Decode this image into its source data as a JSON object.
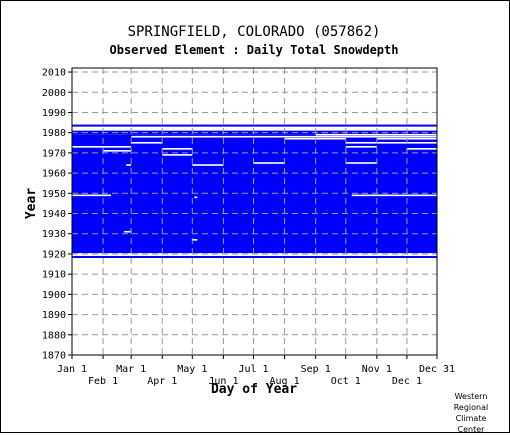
{
  "header": {
    "title": "SPRINGFIELD, COLORADO   (057862)",
    "subtitle": "Observed Element : Daily Total Snowdepth"
  },
  "credit": [
    "Western",
    "Regional",
    "Climate",
    "Center"
  ],
  "colors": {
    "data": "#0000ff",
    "grid": "#999999",
    "background": "#ffffff",
    "axis": "#000000"
  },
  "chart_data": {
    "type": "heatmap",
    "title": "SPRINGFIELD, COLORADO   (057862)",
    "subtitle": "Observed Element : Daily Total Snowdepth",
    "xlabel": "Day of Year",
    "ylabel": "Year",
    "xlim": [
      1,
      365
    ],
    "ylim": [
      1870,
      2012
    ],
    "x_ticks_upper": [
      {
        "label": "Jan 1",
        "day": 1
      },
      {
        "label": "Mar 1",
        "day": 60
      },
      {
        "label": "May 1",
        "day": 121
      },
      {
        "label": "Jul 1",
        "day": 182
      },
      {
        "label": "Sep 1",
        "day": 244
      },
      {
        "label": "Nov 1",
        "day": 305
      },
      {
        "label": "Dec 31",
        "day": 365
      }
    ],
    "x_ticks_lower": [
      {
        "label": "Feb 1",
        "day": 32
      },
      {
        "label": "Apr 1",
        "day": 91
      },
      {
        "label": "Jun 1",
        "day": 152
      },
      {
        "label": "Aug 1",
        "day": 213
      },
      {
        "label": "Oct 1",
        "day": 274
      },
      {
        "label": "Dec 1",
        "day": 335
      }
    ],
    "y_ticks": [
      1870,
      1880,
      1890,
      1900,
      1910,
      1920,
      1930,
      1940,
      1950,
      1960,
      1970,
      1980,
      1990,
      2000,
      2010
    ],
    "grid": true,
    "observed_periods": [
      {
        "start_year": 1918,
        "end_year": 1919,
        "start_day": 1,
        "end_day": 365
      },
      {
        "start_year": 1920,
        "end_year": 1979,
        "start_day": 1,
        "end_day": 365
      },
      {
        "start_year": 1979,
        "end_year": 1981,
        "start_day": 1,
        "end_day": 365
      },
      {
        "start_year": 1983,
        "end_year": 1984,
        "start_day": 1,
        "end_day": 365
      }
    ],
    "missing_segments": [
      {
        "year": 1920,
        "start_day": 1,
        "end_day": 365
      },
      {
        "year": 1949,
        "start_day": 1,
        "end_day": 40
      },
      {
        "year": 1949,
        "start_day": 280,
        "end_day": 365
      },
      {
        "year": 1982,
        "start_day": 1,
        "end_day": 365
      },
      {
        "year": 1985,
        "start_day": 1,
        "end_day": 365
      },
      {
        "year": 1973,
        "start_day": 1,
        "end_day": 60
      },
      {
        "year": 1971,
        "start_day": 32,
        "end_day": 60
      },
      {
        "year": 1975,
        "start_day": 60,
        "end_day": 91
      },
      {
        "year": 1978,
        "start_day": 60,
        "end_day": 365
      },
      {
        "year": 1972,
        "start_day": 91,
        "end_day": 121
      },
      {
        "year": 1969,
        "start_day": 91,
        "end_day": 121
      },
      {
        "year": 1964,
        "start_day": 121,
        "end_day": 152
      },
      {
        "year": 1965,
        "start_day": 182,
        "end_day": 213
      },
      {
        "year": 1977,
        "start_day": 213,
        "end_day": 274
      },
      {
        "year": 1979,
        "start_day": 244,
        "end_day": 365
      },
      {
        "year": 1975,
        "start_day": 274,
        "end_day": 305
      },
      {
        "year": 1965,
        "start_day": 274,
        "end_day": 305
      },
      {
        "year": 1973,
        "start_day": 274,
        "end_day": 305
      },
      {
        "year": 1977,
        "start_day": 305,
        "end_day": 365
      },
      {
        "year": 1975,
        "start_day": 305,
        "end_day": 365
      },
      {
        "year": 1972,
        "start_day": 335,
        "end_day": 365
      },
      {
        "year": 1931,
        "start_day": 53,
        "end_day": 60
      },
      {
        "year": 1927,
        "start_day": 121,
        "end_day": 126
      },
      {
        "year": 1964,
        "start_day": 55,
        "end_day": 60
      },
      {
        "year": 1948,
        "start_day": 123,
        "end_day": 126
      }
    ]
  }
}
